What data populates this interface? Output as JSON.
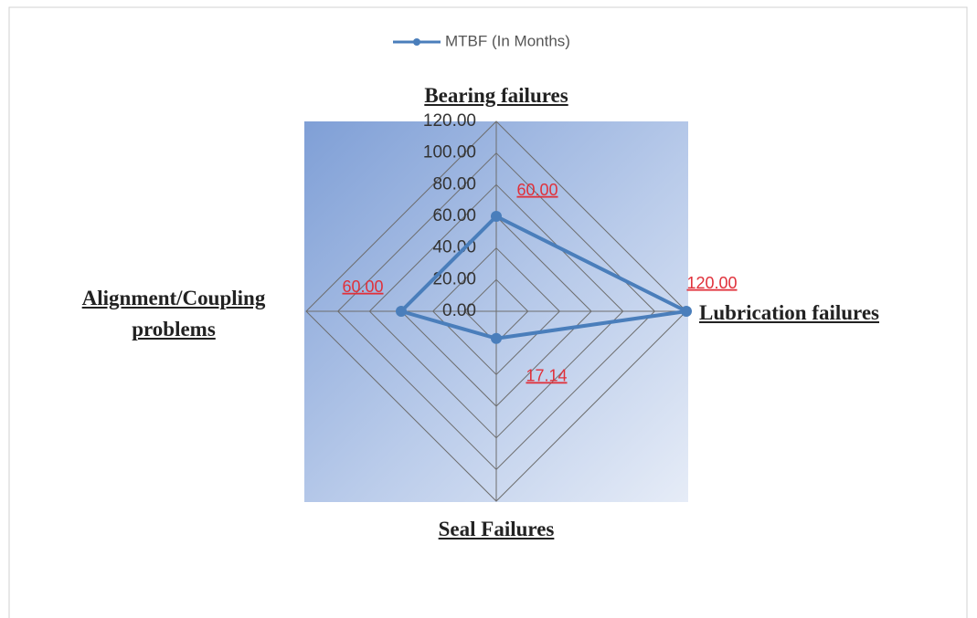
{
  "chart_data": {
    "type": "radar",
    "categories": [
      "Bearing failures",
      "Lubrication failures",
      "Seal Failures",
      "Alignment/Coupling problems"
    ],
    "series": [
      {
        "name": "MTBF (In Months)",
        "color": "#4a7ebb",
        "values": [
          60,
          120,
          17.14,
          60
        ],
        "value_labels": [
          "60.00",
          "120.00",
          "17.14",
          "60.00"
        ]
      }
    ],
    "rlim": [
      0,
      120
    ],
    "rticks": [
      {
        "value": 0,
        "label": "0.00"
      },
      {
        "value": 20,
        "label": "20.00"
      },
      {
        "value": 40,
        "label": "40.00"
      },
      {
        "value": 60,
        "label": "60.00"
      },
      {
        "value": 80,
        "label": "80.00"
      },
      {
        "value": 100,
        "label": "100.00"
      },
      {
        "value": 120,
        "label": "120.00"
      }
    ],
    "grid": true,
    "legend": "top"
  }
}
